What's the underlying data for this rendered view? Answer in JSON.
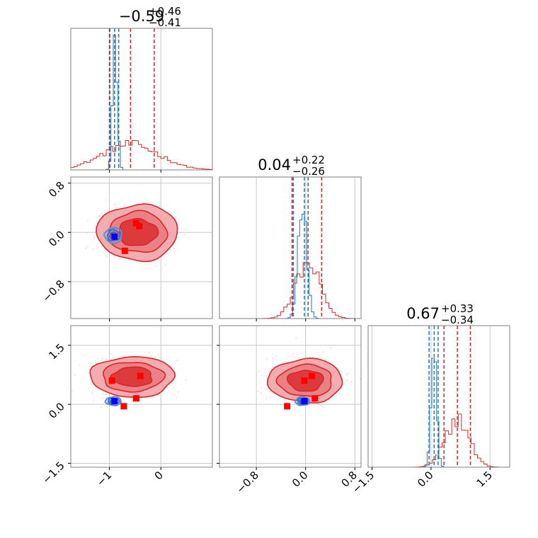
{
  "chart_data": {
    "type": "corner",
    "parameters": [
      {
        "title_value": "−0.59",
        "title_plus": "+0.46",
        "title_minus": "−0.41"
      },
      {
        "title_value": "0.04",
        "title_plus": "+0.22",
        "title_minus": "−0.26"
      },
      {
        "title_value": "0.67",
        "title_plus": "+0.33",
        "title_minus": "−0.34"
      }
    ],
    "ranges": [
      [
        -1.75,
        1.0
      ],
      [
        -1.4,
        0.9
      ],
      [
        -1.6,
        2.0
      ]
    ],
    "ticks": {
      "p0": {
        "values": [
          -1,
          0
        ],
        "labels": [
          "−1",
          "0"
        ]
      },
      "p1": {
        "values": [
          -0.8,
          0.0,
          0.8
        ],
        "labels": [
          "−0.8",
          "0.0",
          "0.8"
        ]
      },
      "p2": {
        "values": [
          -1.5,
          0.0,
          1.5
        ],
        "labels": [
          "−1.5",
          "0.0",
          "1.5"
        ]
      }
    },
    "grid": true,
    "series": [
      {
        "color": "#d62728",
        "quantiles": [
          [
            -1.0,
            -0.59,
            -0.13
          ],
          [
            -0.22,
            0.04,
            0.26
          ],
          [
            0.33,
            0.67,
            1.0
          ]
        ]
      },
      {
        "color": "#1f77b4",
        "quantiles": [
          [
            -0.99,
            -0.9,
            -0.82
          ],
          [
            -0.2,
            -0.02,
            0.04
          ],
          [
            -0.05,
            0.08,
            0.18
          ]
        ]
      }
    ],
    "marker_colors": {
      "red": "#ff0000",
      "blue": "#0000ff"
    },
    "points_p0_p1": {
      "red": [
        [
          -0.48,
          0.15
        ],
        [
          -0.42,
          0.1
        ],
        [
          -0.7,
          -0.3
        ]
      ],
      "blue": [
        [
          -0.9,
          -0.07
        ]
      ]
    },
    "points_p0_p2": {
      "red": [
        [
          -0.95,
          0.6
        ],
        [
          -0.4,
          0.72
        ],
        [
          -0.48,
          0.15
        ],
        [
          -0.72,
          -0.05
        ]
      ],
      "blue": [
        [
          -0.9,
          0.08
        ]
      ]
    },
    "points_p1_p2": {
      "red": [
        [
          -0.02,
          0.6
        ],
        [
          0.1,
          0.72
        ],
        [
          0.15,
          0.15
        ],
        [
          -0.3,
          -0.05
        ]
      ],
      "blue": [
        [
          -0.02,
          0.08
        ]
      ]
    }
  }
}
